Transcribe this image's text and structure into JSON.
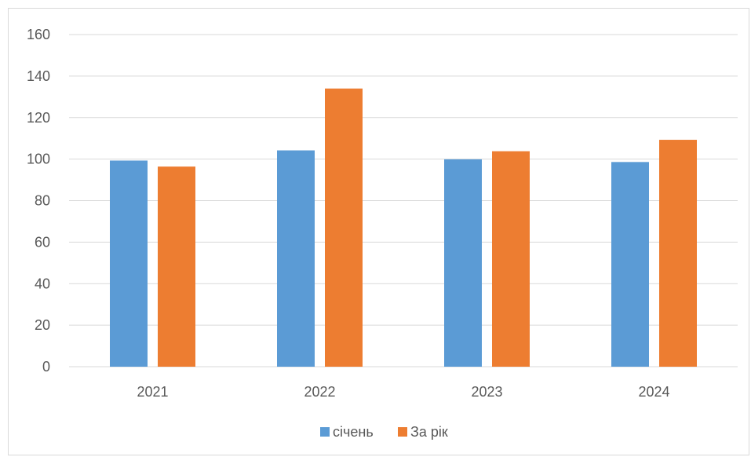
{
  "chart_data": {
    "type": "bar",
    "title": "",
    "xlabel": "",
    "ylabel": "",
    "categories": [
      "2021",
      "2022",
      "2023",
      "2024"
    ],
    "series": [
      {
        "name": "січень",
        "color": "#5B9BD5",
        "values": [
          99.3,
          104.2,
          99.9,
          98.6
        ]
      },
      {
        "name": "За рік",
        "color": "#ED7D31",
        "values": [
          96.4,
          134.0,
          103.8,
          109.3
        ]
      }
    ],
    "ylim": [
      0,
      160
    ],
    "yticks": [
      "0",
      "20",
      "40",
      "60",
      "80",
      "100",
      "120",
      "140",
      "160"
    ],
    "grid": true,
    "legend_position": "bottom",
    "colors": {
      "grid": "#d9d9d9",
      "axis_text": "#595959"
    }
  }
}
